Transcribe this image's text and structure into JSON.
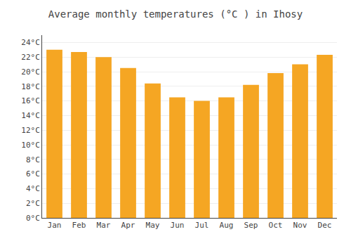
{
  "chart_data": {
    "type": "bar",
    "title": "Average monthly temperatures (°C ) in Ihosy",
    "categories": [
      "Jan",
      "Feb",
      "Mar",
      "Apr",
      "May",
      "Jun",
      "Jul",
      "Aug",
      "Sep",
      "Oct",
      "Nov",
      "Dec"
    ],
    "values": [
      23.0,
      22.7,
      22.0,
      20.5,
      18.4,
      16.5,
      16.0,
      16.5,
      18.2,
      19.8,
      21.0,
      22.3
    ],
    "color": "#F5A623",
    "ylim": [
      0,
      25
    ],
    "yticks": [
      {
        "value": 0,
        "label": "0°C"
      },
      {
        "value": 2,
        "label": "2°C"
      },
      {
        "value": 4,
        "label": "4°C"
      },
      {
        "value": 6,
        "label": "6°C"
      },
      {
        "value": 8,
        "label": "8°C"
      },
      {
        "value": 10,
        "label": "10°C"
      },
      {
        "value": 12,
        "label": "12°C"
      },
      {
        "value": 14,
        "label": "14°C"
      },
      {
        "value": 16,
        "label": "16°C"
      },
      {
        "value": 18,
        "label": "18°C"
      },
      {
        "value": 20,
        "label": "20°C"
      },
      {
        "value": 22,
        "label": "22°C"
      },
      {
        "value": 24,
        "label": "24°C"
      }
    ],
    "grid": true
  }
}
